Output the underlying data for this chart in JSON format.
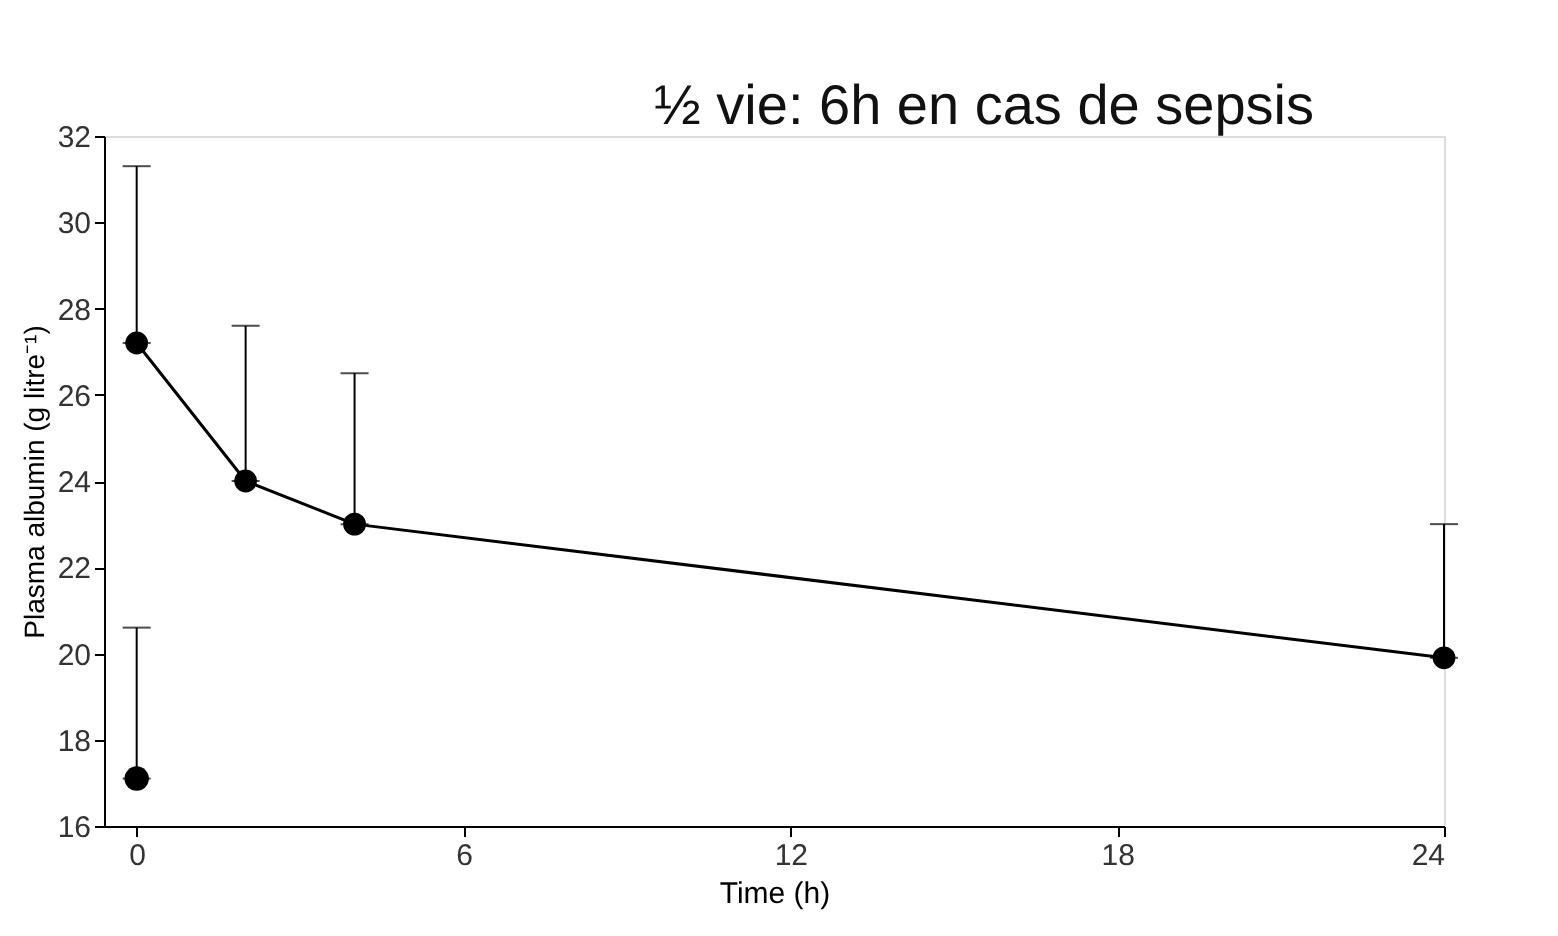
{
  "chart_data": {
    "type": "line",
    "xlabel": "Time (h)",
    "ylabel": "Plasma albumin (g litre⁻¹)",
    "annotations": [
      "½ vie: 6h en cas de sepsis"
    ],
    "series": [
      {
        "color": "#000000",
        "x": [
          0,
          2,
          4,
          24
        ],
        "values": [
          27.2,
          24.0,
          23.0,
          19.9
        ],
        "errors": [
          [
            27.2,
            31.3
          ],
          [
            24.0,
            27.6
          ],
          [
            23.0,
            26.5
          ],
          [
            19.9,
            23.0
          ]
        ]
      },
      {
        "type": "scatter",
        "color": "#000000",
        "x": [
          0
        ],
        "values": [
          17.1
        ],
        "errors": [
          [
            17.1,
            20.6
          ]
        ]
      }
    ],
    "xlim": [
      -0.6,
      24
    ],
    "xticks": [
      0,
      6,
      12,
      18,
      24
    ],
    "ylim": [
      16,
      32
    ],
    "yticks": [
      16,
      18,
      20,
      22,
      24,
      26,
      28,
      30,
      32
    ],
    "grid": false,
    "marker": "circle",
    "line_style": "solid"
  }
}
